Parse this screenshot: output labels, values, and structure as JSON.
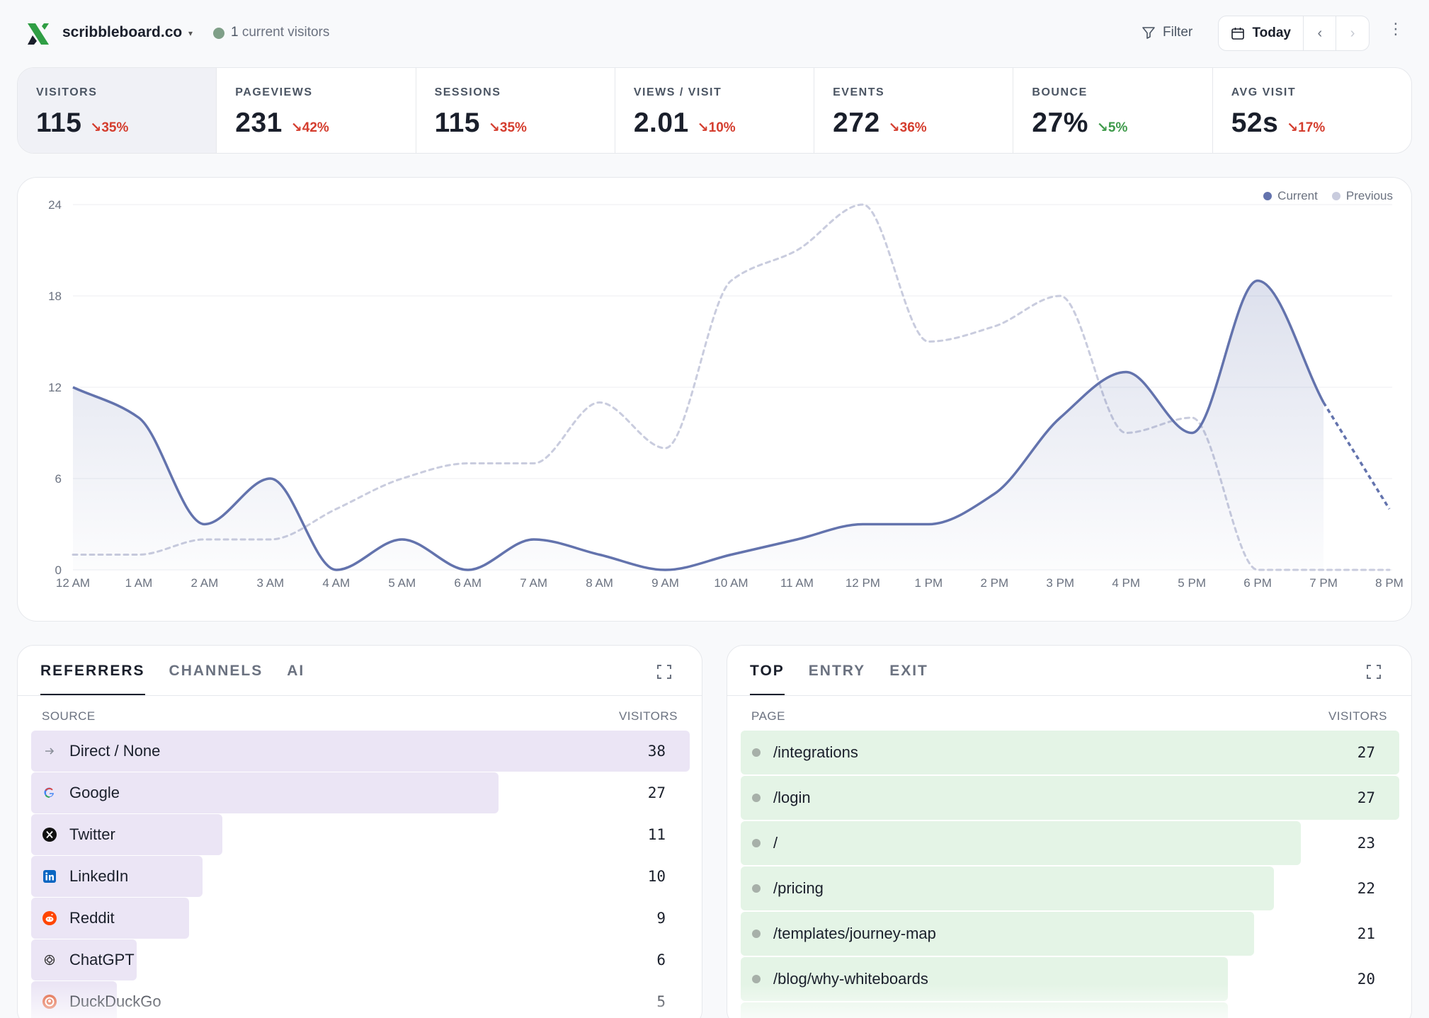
{
  "header": {
    "site_name": "scribbleboard.co",
    "live_count": "1",
    "live_label": "current visitors",
    "filter_label": "Filter",
    "date_label": "Today",
    "prev_symbol": "‹",
    "next_symbol": "›",
    "more_symbol": "⋮"
  },
  "stats": [
    {
      "label": "VISITORS",
      "value": "115",
      "change": "↘35%",
      "direction": "down",
      "active": true
    },
    {
      "label": "PAGEVIEWS",
      "value": "231",
      "change": "↘42%",
      "direction": "down",
      "active": false
    },
    {
      "label": "SESSIONS",
      "value": "115",
      "change": "↘35%",
      "direction": "down",
      "active": false
    },
    {
      "label": "VIEWS / VISIT",
      "value": "2.01",
      "change": "↘10%",
      "direction": "down",
      "active": false
    },
    {
      "label": "EVENTS",
      "value": "272",
      "change": "↘36%",
      "direction": "down",
      "active": false
    },
    {
      "label": "BOUNCE",
      "value": "27%",
      "change": "↘5%",
      "direction": "up",
      "active": false
    },
    {
      "label": "AVG VISIT",
      "value": "52s",
      "change": "↘17%",
      "direction": "down",
      "active": false
    }
  ],
  "chart_data": {
    "type": "area",
    "x": [
      "12 AM",
      "1 AM",
      "2 AM",
      "3 AM",
      "4 AM",
      "5 AM",
      "6 AM",
      "7 AM",
      "8 AM",
      "9 AM",
      "10 AM",
      "11 AM",
      "12 PM",
      "1 PM",
      "2 PM",
      "3 PM",
      "4 PM",
      "5 PM",
      "6 PM",
      "7 PM",
      "8 PM"
    ],
    "yticks": [
      0,
      6,
      12,
      18,
      24
    ],
    "ylim": [
      0,
      24
    ],
    "series": [
      {
        "name": "Current",
        "color": "#6373ad",
        "values": [
          12,
          10,
          3,
          6,
          0,
          2,
          0,
          2,
          1,
          0,
          1,
          2,
          3,
          3,
          5,
          10,
          13,
          9,
          19,
          11,
          4
        ],
        "projected_from_index": 19
      },
      {
        "name": "Previous",
        "color": "#c9ccde",
        "values": [
          1,
          1,
          2,
          2,
          4,
          6,
          7,
          7,
          11,
          8,
          19,
          21,
          24,
          15,
          16,
          18,
          9,
          10,
          0,
          0,
          0
        ]
      }
    ],
    "legend_position": "top-right",
    "grid": true
  },
  "referrers": {
    "tabs": [
      "REFERRERS",
      "CHANNELS",
      "AI"
    ],
    "col_source": "SOURCE",
    "col_visitors": "VISITORS",
    "bar_color": "#ebe5f5",
    "rows": [
      {
        "label": "Direct / None",
        "value": "38",
        "share": 1.0,
        "icon": "arrow-right-icon"
      },
      {
        "label": "Google",
        "value": "27",
        "share": 0.71,
        "icon": "google-icon"
      },
      {
        "label": "Twitter",
        "value": "11",
        "share": 0.29,
        "icon": "x-twitter-icon"
      },
      {
        "label": "LinkedIn",
        "value": "10",
        "share": 0.26,
        "icon": "linkedin-icon"
      },
      {
        "label": "Reddit",
        "value": "9",
        "share": 0.24,
        "icon": "reddit-icon"
      },
      {
        "label": "ChatGPT",
        "value": "6",
        "share": 0.16,
        "icon": "chatgpt-icon"
      },
      {
        "label": "DuckDuckGo",
        "value": "5",
        "share": 0.13,
        "icon": "duckduckgo-icon"
      }
    ]
  },
  "pages": {
    "tabs": [
      "TOP",
      "ENTRY",
      "EXIT"
    ],
    "col_page": "PAGE",
    "col_visitors": "VISITORS",
    "bar_color": "#e4f4e6",
    "rows": [
      {
        "label": "/integrations",
        "value": "27",
        "share": 1.0
      },
      {
        "label": "/login",
        "value": "27",
        "share": 1.0
      },
      {
        "label": "/",
        "value": "23",
        "share": 0.85
      },
      {
        "label": "/pricing",
        "value": "22",
        "share": 0.81
      },
      {
        "label": "/templates/journey-map",
        "value": "21",
        "share": 0.78
      },
      {
        "label": "/blog/why-whiteboards",
        "value": "20",
        "share": 0.74
      },
      {
        "label": "",
        "value": "",
        "share": 0.74
      }
    ]
  }
}
